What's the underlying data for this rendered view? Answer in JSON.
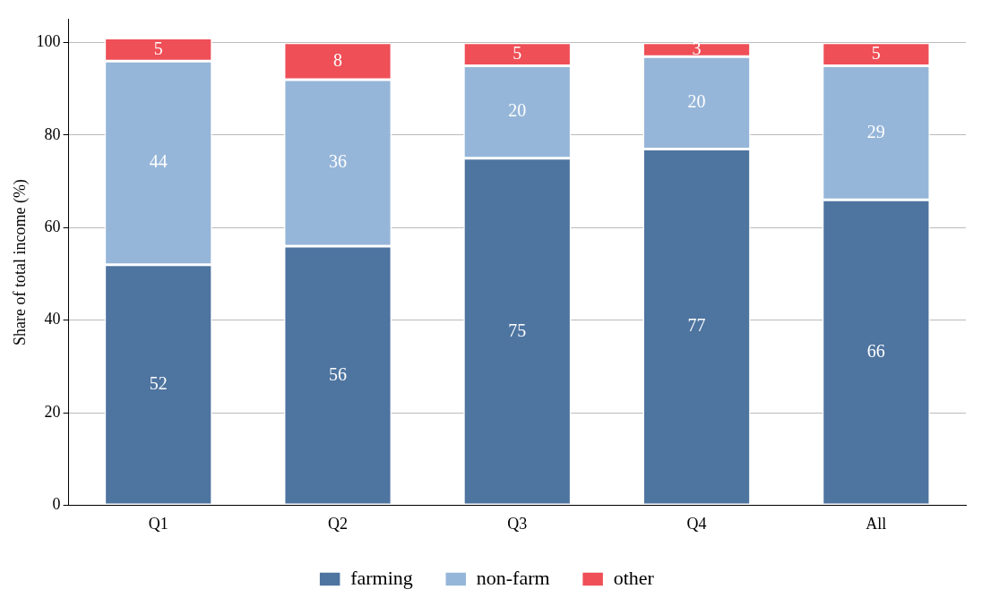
{
  "chart_data": {
    "type": "bar",
    "ylabel": "Share of total income (%)",
    "categories": [
      "Q1",
      "Q2",
      "Q3",
      "Q4",
      "All"
    ],
    "stacked": true,
    "series": [
      {
        "name": "farming",
        "color": "#4e74a0",
        "values": [
          52,
          56,
          75,
          77,
          66
        ]
      },
      {
        "name": "non-farm",
        "color": "#96b6d9",
        "values": [
          44,
          36,
          20,
          20,
          29
        ]
      },
      {
        "name": "other",
        "color": "#ef4f57",
        "values": [
          5,
          8,
          5,
          3,
          5
        ]
      }
    ],
    "ylim": [
      0,
      105
    ],
    "yticks": [
      0,
      20,
      40,
      60,
      80,
      100
    ],
    "grid": "y",
    "legend": "bottom",
    "data_labels": true
  }
}
